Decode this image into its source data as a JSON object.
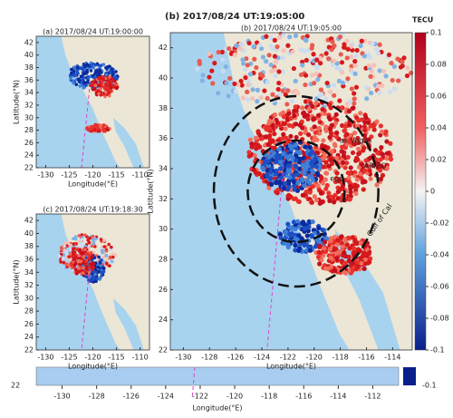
{
  "main_title": "(b) 2017/08/24 UT:19:05:00",
  "panels": [
    {
      "title": "(a) 2017/08/24 UT:19:00:00",
      "xlabel": "Longitude(°E)",
      "ylabel": "Latitude(°N)",
      "xlim": [
        -132,
        -108
      ],
      "ylim": [
        22,
        43
      ],
      "xticks": [
        -130,
        -125,
        -120,
        -115,
        -110
      ],
      "yticks": [
        22,
        24,
        26,
        28,
        30,
        32,
        34,
        36,
        38,
        40,
        42
      ]
    },
    {
      "title": "(b) 2017/08/24 UT:19:05:00",
      "xlabel": "Longitude(°E)",
      "ylabel": "Latitude(°N)",
      "xlim": [
        -131,
        -112.5
      ],
      "ylim": [
        22,
        43
      ],
      "xticks": [
        -130,
        -128,
        -126,
        -124,
        -122,
        -120,
        -118,
        -116,
        -114
      ],
      "yticks": [
        22,
        24,
        26,
        28,
        30,
        32,
        34,
        36,
        38,
        40,
        42
      ]
    },
    {
      "title": "(c) 2017/08/24 UT:19:18:30",
      "xlabel": "Longitude(°E)",
      "ylabel": "Latitude(°N)",
      "xlim": [
        -132,
        -108
      ],
      "ylim": [
        22,
        43
      ],
      "xticks": [
        -130,
        -125,
        -120,
        -115,
        -110
      ],
      "yticks": [
        22,
        24,
        26,
        28,
        30,
        32,
        34,
        36,
        38,
        40,
        42
      ]
    }
  ],
  "map_labels": [
    "as Vegas",
    "ARIZO",
    "ego",
    "Gulf of Cal"
  ],
  "colorbar": {
    "title": "TECU",
    "ylim": [
      -0.1,
      0.1
    ],
    "ticks": [
      0.1,
      0.08,
      0.06,
      0.04,
      0.02,
      0,
      -0.02,
      -0.04,
      -0.06,
      -0.08,
      -0.1
    ]
  },
  "bottom": {
    "xlim": [
      -131.5,
      -110.5
    ],
    "xticks": [
      -130,
      -128,
      -126,
      -124,
      -122,
      -120,
      -118,
      -116,
      -114,
      -112
    ],
    "xlabel": "Longitude(°E)",
    "left_label": "22",
    "right_label": "-0.1"
  }
}
